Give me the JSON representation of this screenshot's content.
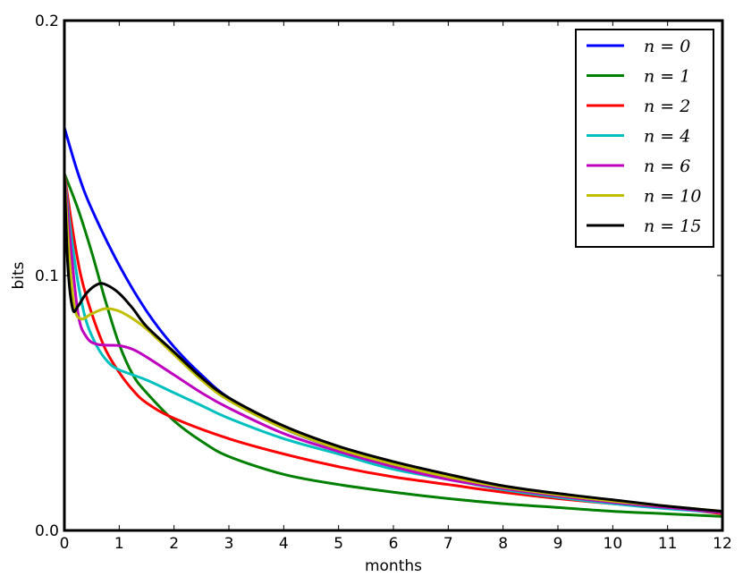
{
  "chart_data": {
    "type": "line",
    "xlabel": "months",
    "ylabel": "bits",
    "xlim": [
      0,
      12
    ],
    "ylim": [
      0,
      0.2
    ],
    "xticks": [
      "0",
      "1",
      "2",
      "3",
      "4",
      "5",
      "6",
      "7",
      "8",
      "9",
      "10",
      "11",
      "12"
    ],
    "yticks": [
      "0.0",
      "0.1",
      "0.2"
    ],
    "xtick_values": [
      0,
      1,
      2,
      3,
      4,
      5,
      6,
      7,
      8,
      9,
      10,
      11,
      12
    ],
    "ytick_values": [
      0.0,
      0.1,
      0.2
    ],
    "grid": false,
    "legend_position": "top-right",
    "series": [
      {
        "name": "n = 0",
        "color": "#0000ff",
        "points": [
          [
            0,
            0.158
          ],
          [
            0.25,
            0.14
          ],
          [
            0.5,
            0.126
          ],
          [
            1,
            0.104
          ],
          [
            1.5,
            0.086
          ],
          [
            2,
            0.072
          ],
          [
            2.5,
            0.061
          ],
          [
            3,
            0.052
          ],
          [
            4,
            0.04
          ],
          [
            5,
            0.032
          ],
          [
            6,
            0.026
          ],
          [
            7,
            0.021
          ],
          [
            8,
            0.0165
          ],
          [
            9,
            0.0135
          ],
          [
            10,
            0.011
          ],
          [
            11,
            0.009
          ],
          [
            12,
            0.0075
          ]
        ]
      },
      {
        "name": "n = 1",
        "color": "#007f00",
        "points": [
          [
            0,
            0.14
          ],
          [
            0.25,
            0.126
          ],
          [
            0.5,
            0.109
          ],
          [
            0.75,
            0.09
          ],
          [
            1,
            0.073
          ],
          [
            1.25,
            0.061
          ],
          [
            1.5,
            0.054
          ],
          [
            2,
            0.043
          ],
          [
            2.5,
            0.035
          ],
          [
            3,
            0.029
          ],
          [
            4,
            0.022
          ],
          [
            5,
            0.018
          ],
          [
            6,
            0.015
          ],
          [
            7,
            0.0125
          ],
          [
            8,
            0.0105
          ],
          [
            9,
            0.009
          ],
          [
            10,
            0.0075
          ],
          [
            11,
            0.0065
          ],
          [
            12,
            0.0055
          ]
        ]
      },
      {
        "name": "n = 2",
        "color": "#ff0000",
        "points": [
          [
            0,
            0.14
          ],
          [
            0.15,
            0.118
          ],
          [
            0.3,
            0.1
          ],
          [
            0.5,
            0.085
          ],
          [
            0.75,
            0.071
          ],
          [
            1,
            0.062
          ],
          [
            1.25,
            0.055
          ],
          [
            1.5,
            0.05
          ],
          [
            2,
            0.044
          ],
          [
            3,
            0.036
          ],
          [
            4,
            0.03
          ],
          [
            5,
            0.025
          ],
          [
            6,
            0.021
          ],
          [
            7,
            0.018
          ],
          [
            8,
            0.015
          ],
          [
            9,
            0.0125
          ],
          [
            10,
            0.0105
          ],
          [
            11,
            0.009
          ],
          [
            12,
            0.0065
          ]
        ]
      },
      {
        "name": "n = 4",
        "color": "#00bfbf",
        "points": [
          [
            0,
            0.14
          ],
          [
            0.1,
            0.12
          ],
          [
            0.25,
            0.097
          ],
          [
            0.4,
            0.082
          ],
          [
            0.6,
            0.072
          ],
          [
            0.8,
            0.066
          ],
          [
            1,
            0.063
          ],
          [
            1.5,
            0.059
          ],
          [
            2,
            0.054
          ],
          [
            2.5,
            0.049
          ],
          [
            3,
            0.044
          ],
          [
            4,
            0.036
          ],
          [
            5,
            0.03
          ],
          [
            6,
            0.024
          ],
          [
            7,
            0.02
          ],
          [
            8,
            0.016
          ],
          [
            9,
            0.013
          ],
          [
            10,
            0.0105
          ],
          [
            11,
            0.0085
          ],
          [
            12,
            0.007
          ]
        ]
      },
      {
        "name": "n = 6",
        "color": "#bf00bf",
        "points": [
          [
            0,
            0.14
          ],
          [
            0.1,
            0.115
          ],
          [
            0.25,
            0.085
          ],
          [
            0.4,
            0.076
          ],
          [
            0.6,
            0.073
          ],
          [
            1,
            0.0725
          ],
          [
            1.25,
            0.071
          ],
          [
            1.5,
            0.068
          ],
          [
            2,
            0.061
          ],
          [
            2.5,
            0.054
          ],
          [
            3,
            0.048
          ],
          [
            4,
            0.038
          ],
          [
            5,
            0.031
          ],
          [
            6,
            0.025
          ],
          [
            7,
            0.02
          ],
          [
            8,
            0.0165
          ],
          [
            9,
            0.0135
          ],
          [
            10,
            0.011
          ],
          [
            11,
            0.009
          ],
          [
            12,
            0.007
          ]
        ]
      },
      {
        "name": "n = 10",
        "color": "#bfbf00",
        "points": [
          [
            0,
            0.14
          ],
          [
            0.08,
            0.11
          ],
          [
            0.18,
            0.088
          ],
          [
            0.3,
            0.083
          ],
          [
            0.5,
            0.085
          ],
          [
            0.75,
            0.087
          ],
          [
            1,
            0.086
          ],
          [
            1.25,
            0.083
          ],
          [
            1.5,
            0.079
          ],
          [
            2,
            0.069
          ],
          [
            2.5,
            0.059
          ],
          [
            3,
            0.051
          ],
          [
            4,
            0.04
          ],
          [
            5,
            0.032
          ],
          [
            6,
            0.026
          ],
          [
            7,
            0.021
          ],
          [
            8,
            0.017
          ],
          [
            9,
            0.014
          ],
          [
            10,
            0.0115
          ],
          [
            11,
            0.0095
          ],
          [
            12,
            0.0075
          ]
        ]
      },
      {
        "name": "n = 15",
        "color": "#000000",
        "points": [
          [
            0,
            0.14
          ],
          [
            0.06,
            0.105
          ],
          [
            0.15,
            0.087
          ],
          [
            0.25,
            0.088
          ],
          [
            0.4,
            0.093
          ],
          [
            0.6,
            0.0965
          ],
          [
            0.75,
            0.0965
          ],
          [
            1,
            0.093
          ],
          [
            1.25,
            0.087
          ],
          [
            1.5,
            0.08
          ],
          [
            2,
            0.07
          ],
          [
            2.5,
            0.06
          ],
          [
            3,
            0.052
          ],
          [
            4,
            0.041
          ],
          [
            5,
            0.033
          ],
          [
            6,
            0.027
          ],
          [
            7,
            0.022
          ],
          [
            8,
            0.0175
          ],
          [
            9,
            0.0145
          ],
          [
            10,
            0.012
          ],
          [
            11,
            0.0095
          ],
          [
            12,
            0.0075
          ]
        ]
      }
    ]
  }
}
